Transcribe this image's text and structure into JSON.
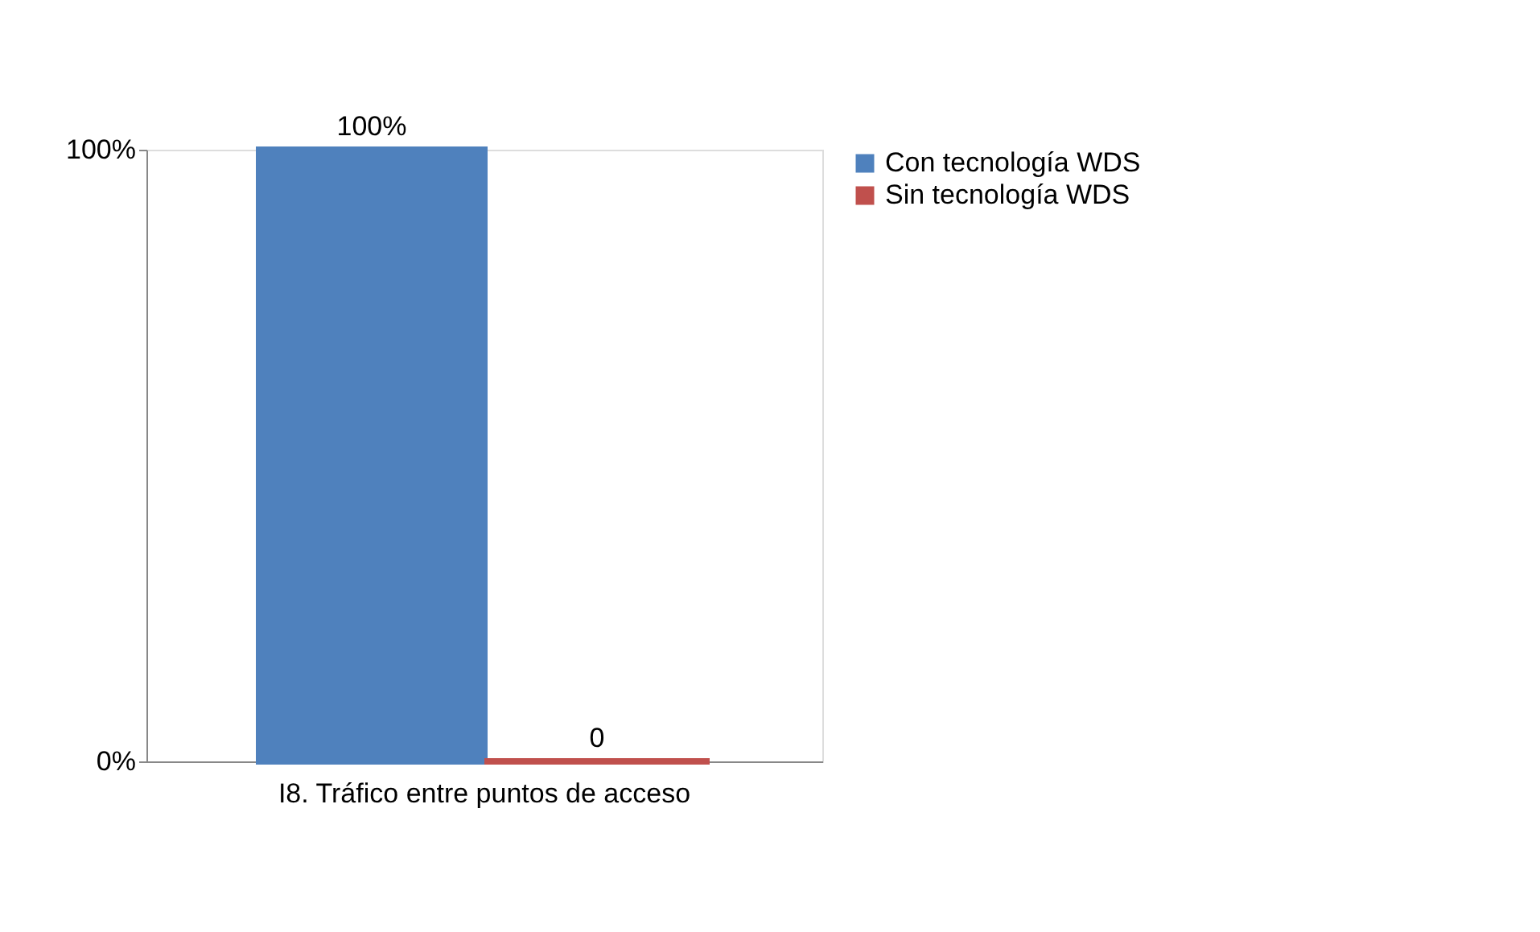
{
  "chart_data": {
    "type": "bar",
    "categories": [
      "I8. Tráfico entre puntos de acceso"
    ],
    "series": [
      {
        "name": "Con tecnología WDS",
        "color": "#4f81bd",
        "values": [
          100
        ],
        "value_labels": [
          "100%"
        ]
      },
      {
        "name": "Sin tecnología WDS",
        "color": "#c0504d",
        "values": [
          0
        ],
        "value_labels": [
          "0"
        ]
      }
    ],
    "ylim": [
      0,
      100
    ],
    "yticks": [
      {
        "value": 0,
        "label": "0%"
      },
      {
        "value": 100,
        "label": "100%"
      }
    ],
    "legend": "right"
  }
}
